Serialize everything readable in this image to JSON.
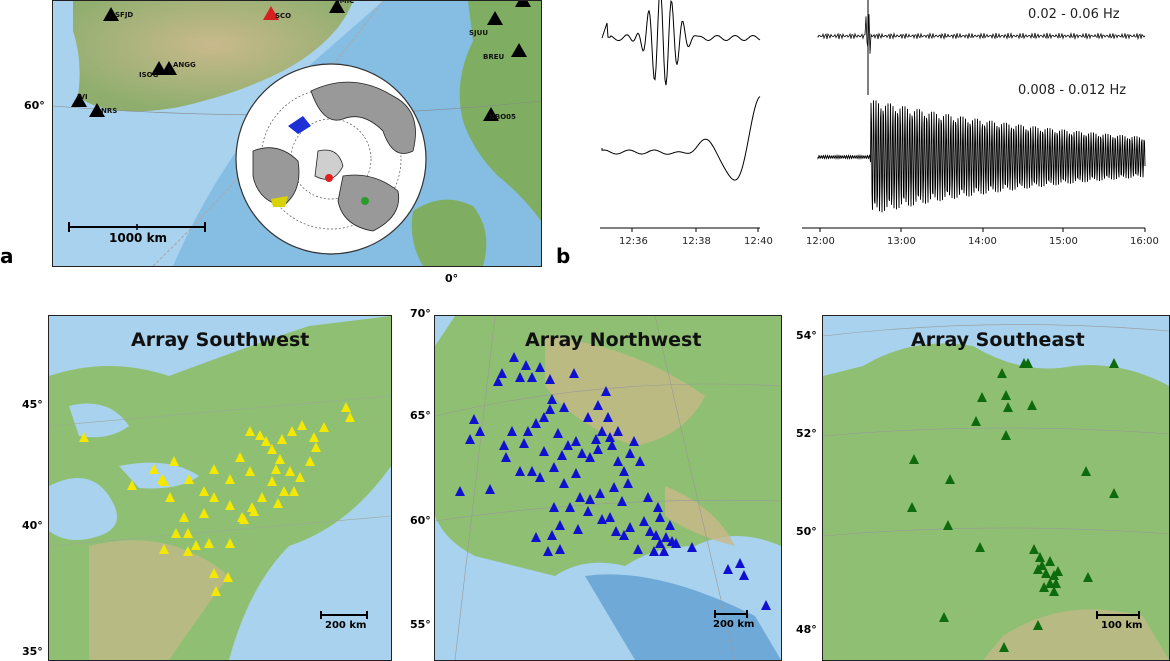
{
  "panel_a": {
    "label": "a",
    "lat_tick": "60°",
    "lon_tick": "0°",
    "scale_label": "1000 km",
    "stations": [
      {
        "name": "SFJD",
        "type": "black"
      },
      {
        "name": "SCO",
        "type": "red"
      },
      {
        "name": "JMIC",
        "type": "black"
      },
      {
        "name": "TOR",
        "type": "black"
      },
      {
        "name": "SJUU",
        "type": "black"
      },
      {
        "name": "BREU",
        "type": "black"
      },
      {
        "name": "ANGG",
        "type": "black"
      },
      {
        "name": "ISOG",
        "type": "black"
      },
      {
        "name": "IVI",
        "type": "black"
      },
      {
        "name": "NRS",
        "type": "black"
      },
      {
        "name": "NBO05",
        "type": "black"
      }
    ]
  },
  "panel_b": {
    "label": "b",
    "band_high": "0.02 - 0.06 Hz",
    "band_low": "0.008 - 0.012 Hz",
    "left_ticks": [
      "12:36",
      "12:38",
      "12:40"
    ],
    "right_ticks": [
      "12:00",
      "13:00",
      "14:00",
      "15:00",
      "16:00"
    ]
  },
  "southwest": {
    "title": "Array Southwest",
    "lat_ticks": [
      "45°",
      "40°",
      "35°"
    ],
    "scale_label": "200 km"
  },
  "northwest": {
    "title": "Array Northwest",
    "lat_ticks": [
      "70°",
      "65°",
      "60°",
      "55°"
    ],
    "scale_label": "200 km"
  },
  "southeast": {
    "title": "Array Southeast",
    "lat_ticks": [
      "54°",
      "52°",
      "50°",
      "48°"
    ],
    "scale_label": "100 km"
  },
  "colors": {
    "ocean": "#a8d2ee",
    "ocean_deep": "#6fa9d8",
    "land": "#8fbf72",
    "ice": "#d9c9a0",
    "yellow": "#f5e800",
    "blue": "#1010d0",
    "green": "#0d6b0d",
    "red": "#d42020"
  }
}
